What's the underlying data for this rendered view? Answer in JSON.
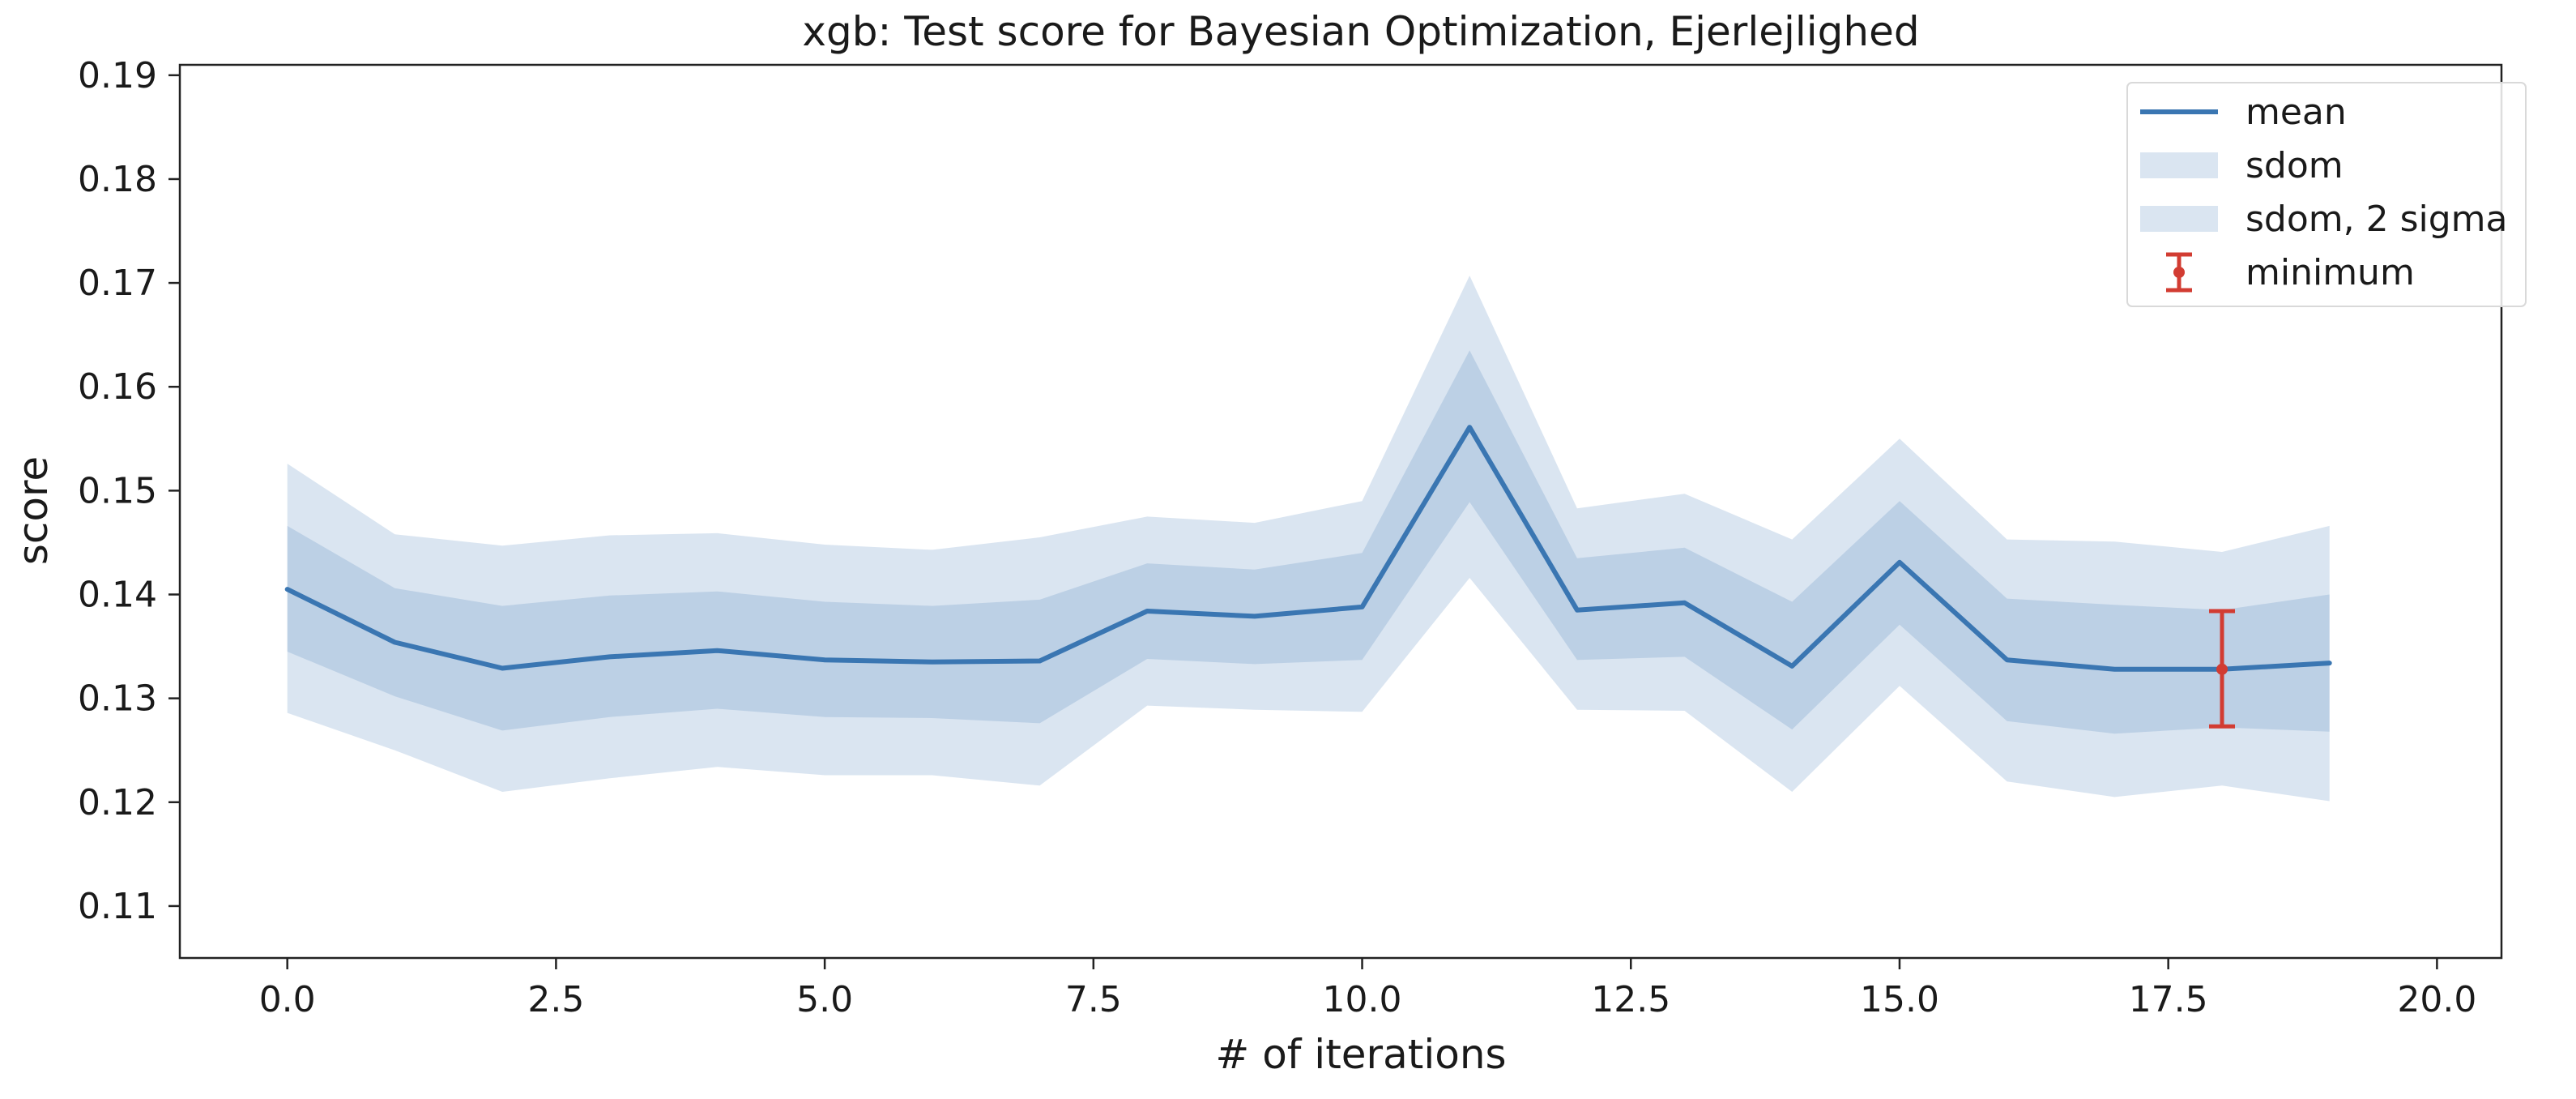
{
  "chart_data": {
    "type": "line",
    "title": "xgb: Test score for Bayesian Optimization, Ejerlejlighed",
    "xlabel": "# of iterations",
    "ylabel": "score",
    "xlim": [
      -1.0,
      20.6
    ],
    "ylim": [
      0.105,
      0.191
    ],
    "xticks": [
      0.0,
      2.5,
      5.0,
      7.5,
      10.0,
      12.5,
      15.0,
      17.5,
      20.0
    ],
    "xtick_labels": [
      "0.0",
      "2.5",
      "5.0",
      "7.5",
      "10.0",
      "12.5",
      "15.0",
      "17.5",
      "20.0"
    ],
    "yticks": [
      0.11,
      0.12,
      0.13,
      0.14,
      0.15,
      0.16,
      0.17,
      0.18,
      0.19
    ],
    "ytick_labels": [
      "0.11",
      "0.12",
      "0.13",
      "0.14",
      "0.15",
      "0.16",
      "0.17",
      "0.18",
      "0.19"
    ],
    "grid": false,
    "legend_position": "top-right",
    "x": [
      0,
      1,
      2,
      3,
      4,
      5,
      6,
      7,
      8,
      9,
      10,
      11,
      12,
      13,
      14,
      15,
      16,
      17,
      18,
      19
    ],
    "series": [
      {
        "name": "mean",
        "kind": "line",
        "color": "#3a76b2",
        "values": [
          0.1405,
          0.1354,
          0.1329,
          0.134,
          0.1346,
          0.1337,
          0.1335,
          0.1336,
          0.1384,
          0.1379,
          0.1388,
          0.1561,
          0.1385,
          0.1392,
          0.1331,
          0.1431,
          0.1337,
          0.1328,
          0.1328,
          0.1334
        ]
      },
      {
        "name": "sdom",
        "kind": "band",
        "color": "#3a76b2",
        "lower": [
          0.1345,
          0.1302,
          0.1269,
          0.1282,
          0.129,
          0.1282,
          0.1281,
          0.1276,
          0.1338,
          0.1333,
          0.1337,
          0.1489,
          0.1337,
          0.134,
          0.127,
          0.1371,
          0.1278,
          0.1266,
          0.1272,
          0.1268
        ],
        "upper": [
          0.1466,
          0.1406,
          0.1389,
          0.1399,
          0.1403,
          0.1393,
          0.1389,
          0.1395,
          0.143,
          0.1424,
          0.144,
          0.1635,
          0.1435,
          0.1445,
          0.1393,
          0.149,
          0.1396,
          0.139,
          0.1385,
          0.14
        ]
      },
      {
        "name": "sdom, 2 sigma",
        "kind": "band",
        "color": "#3a76b2",
        "lower": [
          0.1286,
          0.125,
          0.121,
          0.1223,
          0.1234,
          0.1226,
          0.1226,
          0.1216,
          0.1293,
          0.1289,
          0.1287,
          0.1416,
          0.1289,
          0.1288,
          0.121,
          0.1312,
          0.122,
          0.1205,
          0.1216,
          0.1201
        ],
        "upper": [
          0.1526,
          0.1458,
          0.1447,
          0.1457,
          0.1459,
          0.1448,
          0.1443,
          0.1455,
          0.1475,
          0.1469,
          0.149,
          0.1707,
          0.1483,
          0.1497,
          0.1453,
          0.155,
          0.1453,
          0.1451,
          0.1441,
          0.1466
        ]
      },
      {
        "name": "minimum",
        "kind": "errorbar",
        "color": "#d23c32",
        "x": 18,
        "y": 0.1328,
        "yerr_lower": 0.1273,
        "yerr_upper": 0.1384
      }
    ]
  }
}
